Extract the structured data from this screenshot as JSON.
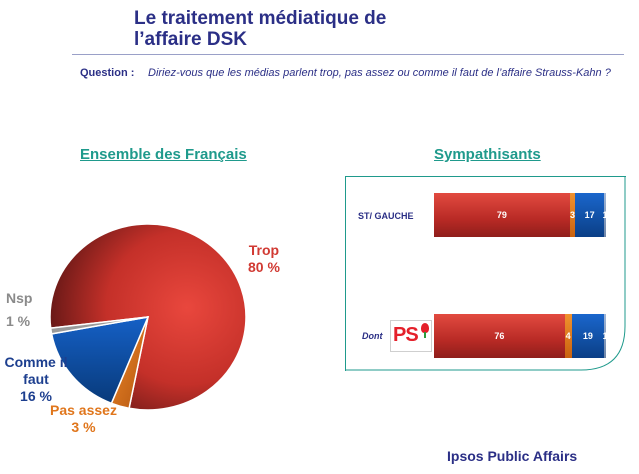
{
  "header": {
    "title_line1": "Le traitement médiatique de",
    "title_line2": "l’affaire DSK",
    "question_label": "Question :",
    "question_text": "Diriez-vous que les médias parlent trop, pas assez ou comme il faut de l’affaire Strauss-Kahn ?"
  },
  "sections": {
    "left_title": "Ensemble des Français",
    "right_title": "Sympathisants"
  },
  "pie_labels": {
    "trop_name": "Trop",
    "trop_value": "80 %",
    "nsp_name": "Nsp",
    "nsp_value": "1 %",
    "comme_name": "Comme il faut",
    "comme_value": "16 %",
    "pas_name": "Pas assez",
    "pas_value": "3 %"
  },
  "bar_rows": {
    "row1_label": "ST/ GAUCHE",
    "row2_label": "Dont",
    "row2_logo": "PS"
  },
  "footer": {
    "brand": "Ipsos Public Affairs"
  },
  "colors": {
    "trop": "#c8302b",
    "pas_assez": "#e0761c",
    "comme_il_faut": "#1458b8",
    "nsp": "#9a9a9a",
    "title": "#2b2f86",
    "accent": "#1f9a8c"
  },
  "chart_data": [
    {
      "type": "pie",
      "title": "Ensemble des Français",
      "categories": [
        "Trop",
        "Pas assez",
        "Comme il faut",
        "Nsp"
      ],
      "values": [
        80,
        3,
        16,
        1
      ]
    },
    {
      "type": "bar",
      "orientation": "horizontal",
      "stacked": true,
      "title": "Sympathisants",
      "categories": [
        "ST/ GAUCHE",
        "Dont PS"
      ],
      "series": [
        {
          "name": "Trop",
          "values": [
            79,
            76
          ]
        },
        {
          "name": "Pas assez",
          "values": [
            3,
            4
          ]
        },
        {
          "name": "Comme il faut",
          "values": [
            17,
            19
          ]
        },
        {
          "name": "Nsp",
          "values": [
            1,
            1
          ]
        }
      ]
    }
  ]
}
